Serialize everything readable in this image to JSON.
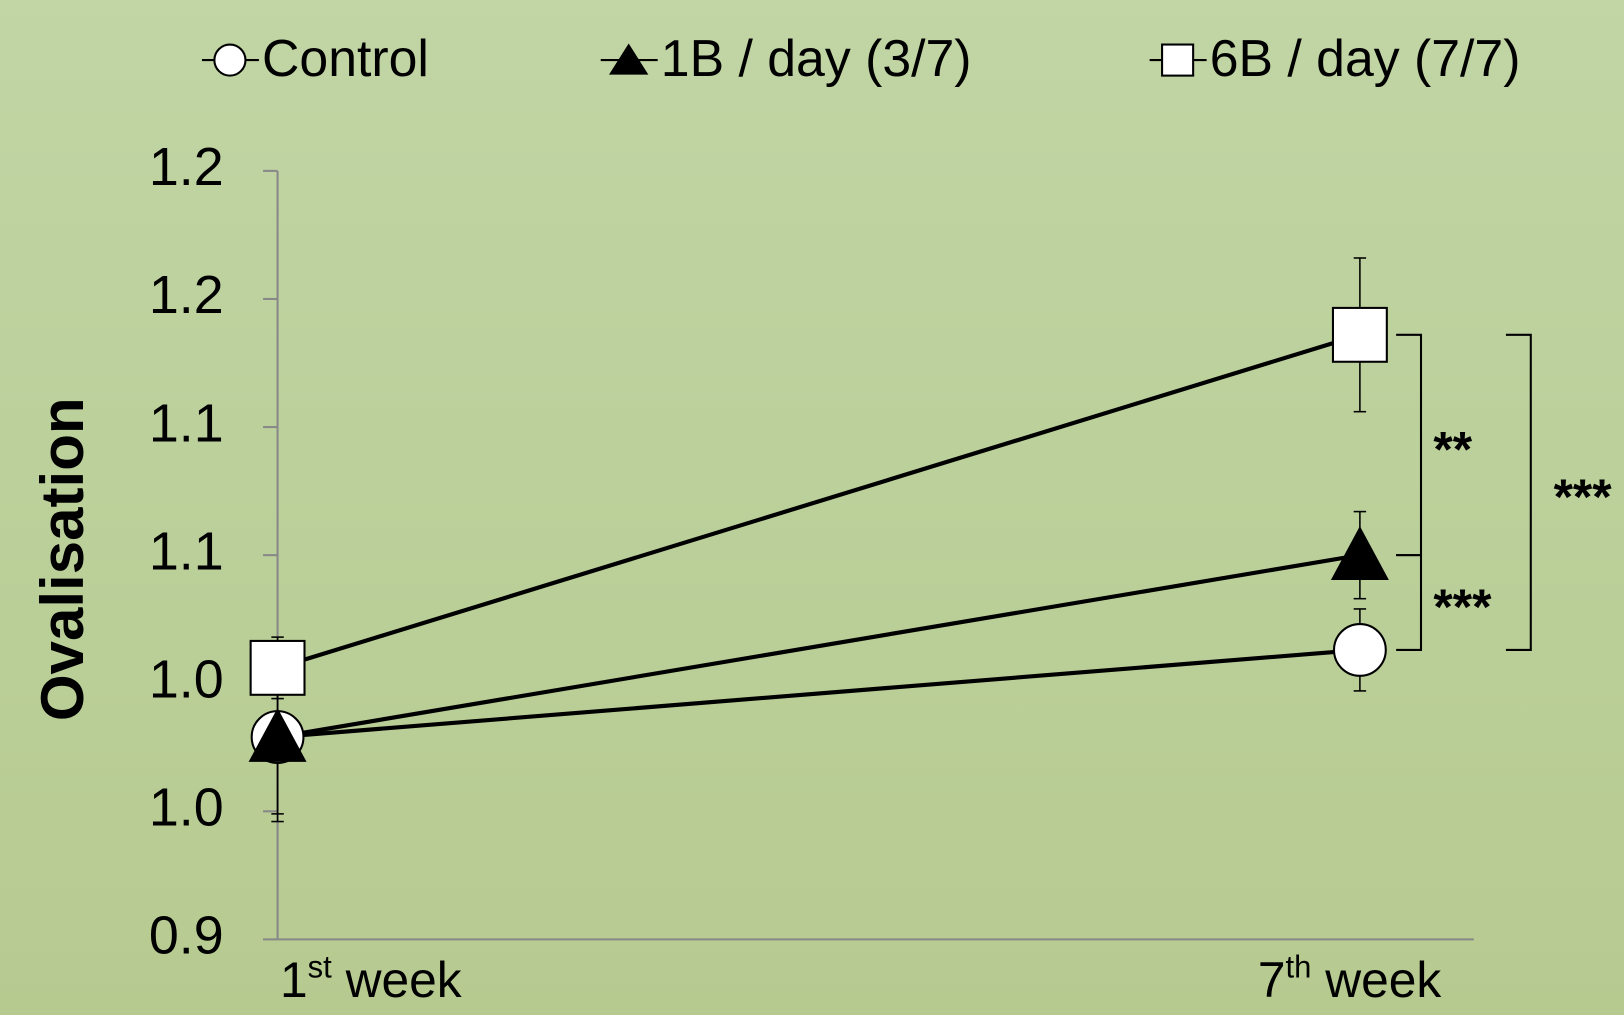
{
  "chart_data": {
    "type": "line",
    "y_label": "Ovalisation",
    "categories": [
      "1st week",
      "7th week"
    ],
    "series": [
      {
        "name": "Control",
        "marker": "circle",
        "color": "#000000",
        "values": [
          0.979,
          1.013
        ],
        "errors": [
          0.033,
          0.016
        ]
      },
      {
        "name": "1B / day (3/7)",
        "marker": "triangle",
        "color": "#000000",
        "values": [
          0.979,
          1.05
        ],
        "errors": [
          0.03,
          0.017
        ]
      },
      {
        "name": "6B / day (7/7)",
        "marker": "square",
        "color": "#000000",
        "values": [
          1.006,
          1.136
        ],
        "errors": [
          0.012,
          0.03
        ]
      }
    ],
    "annotations": [
      "**",
      "***",
      "***"
    ],
    "ylim": [
      0.9,
      1.2
    ],
    "yticks": [
      {
        "value": 0.9,
        "label": "0.9"
      },
      {
        "value": 0.95,
        "label": "1.0"
      },
      {
        "value": 1.0,
        "label": "1.0"
      },
      {
        "value": 1.05,
        "label": "1.1"
      },
      {
        "value": 1.1,
        "label": "1.1"
      },
      {
        "value": 1.15,
        "label": "1.2"
      },
      {
        "value": 1.2,
        "label": "1.2"
      }
    ],
    "legend": "top"
  }
}
